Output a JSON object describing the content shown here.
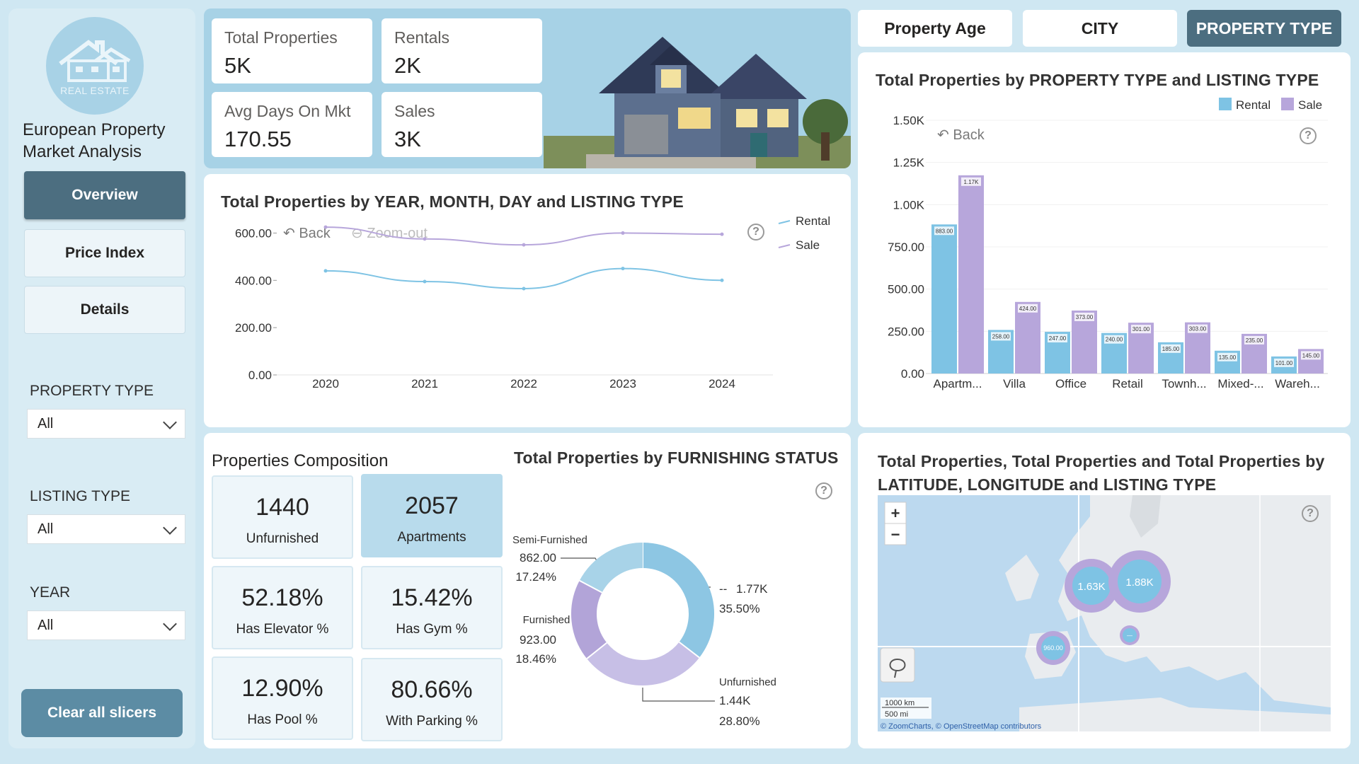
{
  "app": {
    "logo_text": "REAL ESTATE",
    "title": "European Property Market Analysis"
  },
  "nav": [
    {
      "label": "Overview",
      "active": true
    },
    {
      "label": "Price Index",
      "active": false
    },
    {
      "label": "Details",
      "active": false
    }
  ],
  "slicers": [
    {
      "label": "PROPERTY TYPE",
      "value": "All"
    },
    {
      "label": "LISTING TYPE",
      "value": "All"
    },
    {
      "label": "YEAR",
      "value": "All"
    }
  ],
  "clear_button": "Clear all slicers",
  "kpis": {
    "total": {
      "label": "Total Properties",
      "value": "5K"
    },
    "rentals": {
      "label": "Rentals",
      "value": "2K"
    },
    "avg_days": {
      "label": "Avg Days On Mkt",
      "value": "170.55"
    },
    "sales": {
      "label": "Sales",
      "value": "3K"
    }
  },
  "tabs": [
    {
      "label": "Property Age",
      "active": false
    },
    {
      "label": "CITY",
      "active": false
    },
    {
      "label": "PROPERTY TYPE",
      "active": true
    }
  ],
  "controls": {
    "back": "Back",
    "zoom_out": "Zoom-out",
    "help": "?",
    "zoom_in": "+",
    "zoom_minus": "−"
  },
  "colors": {
    "rental": "#7ec3e4",
    "sale": "#b7a6db",
    "accent": "#4c6e80"
  },
  "line_chart": {
    "title": "Total Properties by YEAR, MONTH, DAY and LISTING TYPE",
    "legend": [
      "Rental",
      "Sale"
    ]
  },
  "bar_chart": {
    "title": "Total Properties by PROPERTY TYPE and LISTING TYPE",
    "legend": [
      "Rental",
      "Sale"
    ]
  },
  "composition": {
    "title": "Properties Composition",
    "tiles": [
      {
        "value": "1440",
        "label": "Unfurnished"
      },
      {
        "value": "2057",
        "label": "Apartments"
      },
      {
        "value": "52.18%",
        "label": "Has Elevator %"
      },
      {
        "value": "15.42%",
        "label": "Has Gym %"
      },
      {
        "value": "12.90%",
        "label": "Has Pool %"
      },
      {
        "value": "80.66%",
        "label": "With Parking %"
      }
    ]
  },
  "donut": {
    "title": "Total Properties by FURNISHING STATUS",
    "labels": {
      "semi_name": "Semi-Furnished",
      "semi_val": "862.00",
      "semi_pct": "17.24%",
      "furn_name": "Furnished",
      "furn_val": "923.00",
      "furn_pct": "18.46%",
      "dash_name": "--",
      "dash_val": "1.77K",
      "dash_pct": "35.50%",
      "unf_name": "Unfurnished",
      "unf_val": "1.44K",
      "unf_pct": "28.80%"
    }
  },
  "map": {
    "title": "Total Properties, Total Properties and Total Properties by LATITUDE, LONGITUDE and LISTING TYPE",
    "bubbles": [
      "1.63K",
      "1.88K",
      "960.00",
      "—"
    ],
    "scale": [
      "1000 km",
      "500 mi"
    ],
    "attribution": "© ZoomCharts, © OpenStreetMap contributors"
  },
  "chart_data": [
    {
      "type": "line",
      "title": "Total Properties by YEAR, MONTH, DAY and LISTING TYPE",
      "categories": [
        "2020",
        "2021",
        "2022",
        "2023",
        "2024"
      ],
      "series": [
        {
          "name": "Rental",
          "values": [
            440,
            395,
            365,
            450,
            400
          ]
        },
        {
          "name": "Sale",
          "values": [
            625,
            575,
            550,
            600,
            595
          ]
        }
      ],
      "y_ticks": [
        "0.00",
        "200.00",
        "400.00",
        "600.00"
      ],
      "ylim": [
        0,
        700
      ],
      "legend": "top-right"
    },
    {
      "type": "bar",
      "title": "Total Properties by PROPERTY TYPE and LISTING TYPE",
      "categories": [
        "Apartm...",
        "Villa",
        "Office",
        "Retail",
        "Townh...",
        "Mixed-...",
        "Wareh..."
      ],
      "series": [
        {
          "name": "Rental",
          "values": [
            883,
            258,
            247,
            240,
            185,
            135,
            101
          ],
          "labels": [
            "883.00",
            "258.00",
            "247.00",
            "240.00",
            "185.00",
            "135.00",
            "101.00"
          ]
        },
        {
          "name": "Sale",
          "values": [
            1174,
            424,
            373,
            301,
            303,
            235,
            145
          ],
          "labels": [
            "1.17K",
            "424.00",
            "373.00",
            "301.00",
            "303.00",
            "235.00",
            "145.00"
          ]
        }
      ],
      "y_ticks": [
        "0.00",
        "250.00",
        "500.00",
        "750.00",
        "1.00K",
        "1.25K",
        "1.50K"
      ],
      "ylim": [
        0,
        1500
      ],
      "legend": "top-right"
    },
    {
      "type": "pie",
      "title": "Total Properties by FURNISHING STATUS",
      "categories": [
        "--",
        "Unfurnished",
        "Furnished",
        "Semi-Furnished"
      ],
      "values": [
        1770,
        1440,
        923,
        862
      ],
      "percent": [
        35.5,
        28.8,
        18.46,
        17.24
      ]
    }
  ]
}
